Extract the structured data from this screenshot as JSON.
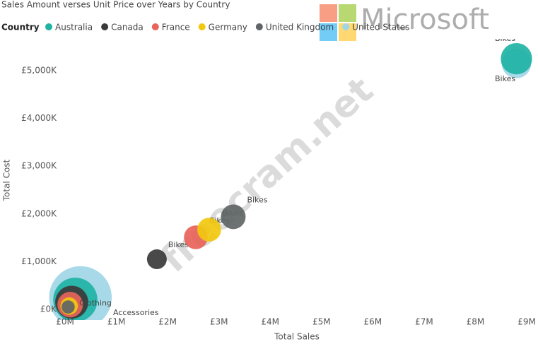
{
  "chart_data": {
    "type": "bubble",
    "title": "Sales Amount verses Unit Price over Years by Country",
    "legend_title": "Country",
    "x_label": "Total Sales",
    "y_label": "Total Cost",
    "xlim": [
      0,
      9000000
    ],
    "ylim": [
      0,
      5600000
    ],
    "xticks": [
      {
        "value": 0,
        "label": "£0M"
      },
      {
        "value": 1000000,
        "label": "£1M"
      },
      {
        "value": 2000000,
        "label": "£2M"
      },
      {
        "value": 3000000,
        "label": "£3M"
      },
      {
        "value": 4000000,
        "label": "£4M"
      },
      {
        "value": 5000000,
        "label": "£5M"
      },
      {
        "value": 6000000,
        "label": "£6M"
      },
      {
        "value": 7000000,
        "label": "£7M"
      },
      {
        "value": 8000000,
        "label": "£8M"
      },
      {
        "value": 9000000,
        "label": "£9M"
      }
    ],
    "yticks": [
      {
        "value": 0,
        "label": "£0K"
      },
      {
        "value": 1000000,
        "label": "£1,000K"
      },
      {
        "value": 2000000,
        "label": "£2,000K"
      },
      {
        "value": 3000000,
        "label": "£3,000K"
      },
      {
        "value": 4000000,
        "label": "£4,000K"
      },
      {
        "value": 5000000,
        "label": "£5,000K"
      }
    ],
    "series": [
      {
        "name": "United States",
        "color": "#9fd6e6",
        "x": [
          300000,
          8800000
        ],
        "y": [
          250000,
          5150000
        ],
        "sizes": [
          180,
          40
        ],
        "labels": [
          "Accessories",
          "Bikes"
        ]
      },
      {
        "name": "Australia",
        "color": "#1fb3a4",
        "x": [
          200000,
          8800000
        ],
        "y": [
          200000,
          5250000
        ],
        "sizes": [
          90,
          45
        ],
        "labels": [
          null,
          "Bikes"
        ]
      },
      {
        "name": "Canada",
        "color": "#3a3a3a",
        "x": [
          130000,
          1790000
        ],
        "y": [
          150000,
          1050000
        ],
        "sizes": [
          50,
          18
        ],
        "labels": [
          null,
          "Bikes"
        ]
      },
      {
        "name": "France",
        "color": "#e8645a",
        "x": [
          100000,
          2550000
        ],
        "y": [
          100000,
          1510000
        ],
        "sizes": [
          30,
          26
        ],
        "labels": [
          null,
          "Bikes"
        ]
      },
      {
        "name": "Germany",
        "color": "#f2c80f",
        "x": [
          80000,
          2810000
        ],
        "y": [
          70000,
          1670000
        ],
        "sizes": [
          14,
          26
        ],
        "labels": [
          "Clothing",
          "Bikes"
        ]
      },
      {
        "name": "United Kingdom",
        "color": "#5f6566",
        "x": [
          60000,
          3280000
        ],
        "y": [
          50000,
          1940000
        ],
        "sizes": [
          8,
          28
        ],
        "labels": [
          null,
          "Bikes"
        ]
      }
    ],
    "watermarks": [
      "Microsoft",
      "freecram.net"
    ]
  }
}
